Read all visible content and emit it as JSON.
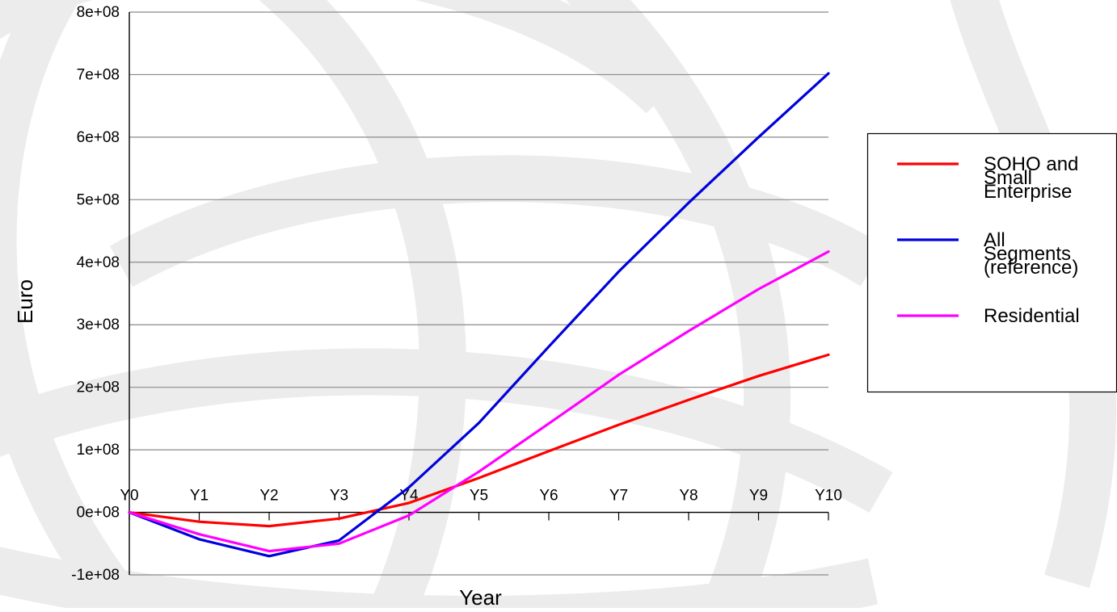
{
  "chart_data": {
    "type": "line",
    "title": "",
    "xlabel": "Year",
    "ylabel": "Euro",
    "categories": [
      "Y0",
      "Y1",
      "Y2",
      "Y3",
      "Y4",
      "Y5",
      "Y6",
      "Y7",
      "Y8",
      "Y9",
      "Y10"
    ],
    "yticks": [
      {
        "value": -100000000,
        "label": "-1e+08"
      },
      {
        "value": 0,
        "label": "0e+08"
      },
      {
        "value": 100000000,
        "label": "1e+08"
      },
      {
        "value": 200000000,
        "label": "2e+08"
      },
      {
        "value": 300000000,
        "label": "3e+08"
      },
      {
        "value": 400000000,
        "label": "4e+08"
      },
      {
        "value": 500000000,
        "label": "5e+08"
      },
      {
        "value": 600000000,
        "label": "6e+08"
      },
      {
        "value": 700000000,
        "label": "7e+08"
      },
      {
        "value": 800000000,
        "label": "8e+08"
      }
    ],
    "ylim": [
      -100000000,
      800000000
    ],
    "grid": true,
    "legend_position": "right",
    "series": [
      {
        "name": "SOHO and Small Enterprise",
        "legend_lines": [
          "SOHO and",
          "Small",
          "Enterprise"
        ],
        "color": "#ff0000",
        "values": [
          0,
          -15000000,
          -22000000,
          -10000000,
          15000000,
          55000000,
          98000000,
          140000000,
          180000000,
          218000000,
          252000000
        ]
      },
      {
        "name": "All Segments (reference)",
        "legend_lines": [
          "All",
          "Segments",
          "(reference)"
        ],
        "color": "#0000dd",
        "values": [
          0,
          -43000000,
          -70000000,
          -45000000,
          40000000,
          143000000,
          265000000,
          385000000,
          495000000,
          600000000,
          702000000
        ]
      },
      {
        "name": "Residential",
        "legend_lines": [
          "Residential"
        ],
        "color": "#ff00ff",
        "values": [
          0,
          -35000000,
          -62000000,
          -50000000,
          -5000000,
          65000000,
          142000000,
          220000000,
          290000000,
          357000000,
          417000000
        ]
      }
    ]
  }
}
